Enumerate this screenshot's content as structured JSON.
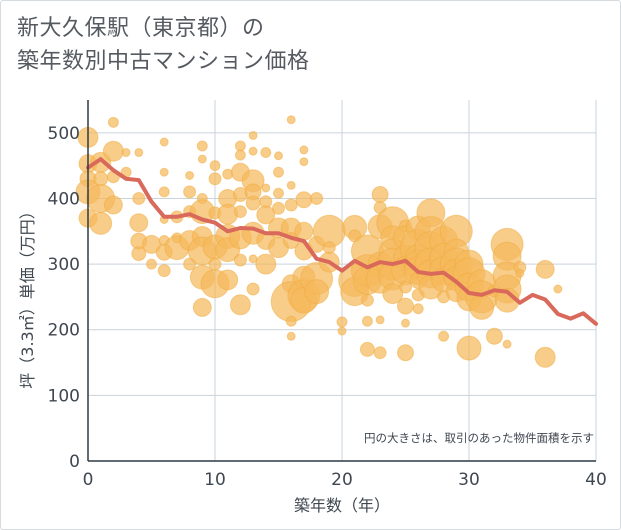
{
  "chart_data": {
    "type": "scatter",
    "title_line1": "新大久保駅（東京都）の",
    "title_line2": "築年数別中古マンション価格",
    "xlabel": "築年数（年）",
    "ylabel": "坪（3.3㎡）単価（万円）",
    "note": "円の大きさは、取引のあった物件面積を示す",
    "xlim": [
      0,
      40
    ],
    "ylim": [
      0,
      550
    ],
    "xticks": [
      0,
      10,
      20,
      30,
      40
    ],
    "yticks": [
      0,
      100,
      200,
      300,
      400,
      500
    ],
    "grid": true,
    "colors": {
      "bubble": "#f5b95c",
      "line": "#d9695a",
      "grid": "#c9d3dc",
      "axis": "#2f3a44"
    },
    "series": [
      {
        "name": "",
        "kind": "line",
        "x": [
          0,
          1,
          2,
          3,
          4,
          5,
          6,
          7,
          8,
          9,
          10,
          11,
          12,
          13,
          14,
          15,
          16,
          17,
          18,
          19,
          20,
          21,
          22,
          23,
          24,
          25,
          26,
          27,
          28,
          29,
          30,
          31,
          32,
          33,
          34,
          35,
          36,
          37,
          38,
          39,
          40
        ],
        "y": [
          447,
          460,
          443,
          430,
          428,
          395,
          372,
          372,
          376,
          368,
          363,
          350,
          355,
          354,
          347,
          347,
          340,
          335,
          308,
          303,
          290,
          305,
          295,
          303,
          300,
          305,
          288,
          285,
          287,
          273,
          256,
          253,
          260,
          258,
          241,
          253,
          246,
          224,
          217,
          225,
          209
        ]
      },
      {
        "name": "",
        "kind": "bubble",
        "points": [
          [
            0,
            493,
            10
          ],
          [
            0,
            453,
            9
          ],
          [
            0,
            430,
            8
          ],
          [
            0,
            410,
            12
          ],
          [
            0,
            370,
            9
          ],
          [
            1,
            455,
            10
          ],
          [
            1,
            430,
            7
          ],
          [
            1,
            400,
            14
          ],
          [
            1,
            362,
            11
          ],
          [
            2,
            516,
            5
          ],
          [
            2,
            472,
            10
          ],
          [
            2,
            433,
            6
          ],
          [
            2,
            390,
            9
          ],
          [
            3,
            470,
            4
          ],
          [
            3,
            440,
            5
          ],
          [
            4,
            470,
            4
          ],
          [
            4,
            400,
            6
          ],
          [
            4,
            363,
            9
          ],
          [
            4,
            335,
            8
          ],
          [
            4,
            316,
            7
          ],
          [
            5,
            330,
            9
          ],
          [
            5,
            300,
            5
          ],
          [
            6,
            486,
            4
          ],
          [
            6,
            440,
            4
          ],
          [
            6,
            410,
            5
          ],
          [
            6,
            368,
            4
          ],
          [
            6,
            336,
            5
          ],
          [
            6,
            318,
            8
          ],
          [
            6,
            290,
            6
          ],
          [
            7,
            372,
            6
          ],
          [
            7,
            340,
            5
          ],
          [
            7,
            325,
            12
          ],
          [
            8,
            435,
            4
          ],
          [
            8,
            410,
            6
          ],
          [
            8,
            380,
            6
          ],
          [
            8,
            336,
            10
          ],
          [
            8,
            300,
            6
          ],
          [
            9,
            480,
            5
          ],
          [
            9,
            460,
            4
          ],
          [
            9,
            400,
            5
          ],
          [
            9,
            380,
            12
          ],
          [
            9,
            342,
            10
          ],
          [
            9,
            320,
            14
          ],
          [
            9,
            280,
            12
          ],
          [
            9,
            234,
            9
          ],
          [
            10,
            450,
            5
          ],
          [
            10,
            430,
            6
          ],
          [
            10,
            378,
            6
          ],
          [
            10,
            326,
            12
          ],
          [
            10,
            300,
            6
          ],
          [
            10,
            270,
            14
          ],
          [
            11,
            437,
            5
          ],
          [
            11,
            400,
            9
          ],
          [
            11,
            376,
            10
          ],
          [
            11,
            342,
            12
          ],
          [
            11,
            322,
            12
          ],
          [
            11,
            276,
            10
          ],
          [
            12,
            480,
            5
          ],
          [
            12,
            466,
            5
          ],
          [
            12,
            440,
            9
          ],
          [
            12,
            406,
            7
          ],
          [
            12,
            380,
            6
          ],
          [
            12,
            340,
            11
          ],
          [
            12,
            306,
            6
          ],
          [
            12,
            238,
            10
          ],
          [
            13,
            496,
            4
          ],
          [
            13,
            472,
            4
          ],
          [
            13,
            427,
            11
          ],
          [
            13,
            410,
            8
          ],
          [
            13,
            393,
            7
          ],
          [
            13,
            347,
            11
          ],
          [
            13,
            308,
            4
          ],
          [
            13,
            262,
            6
          ],
          [
            14,
            470,
            5
          ],
          [
            14,
            416,
            4
          ],
          [
            14,
            395,
            6
          ],
          [
            14,
            375,
            9
          ],
          [
            14,
            336,
            9
          ],
          [
            14,
            300,
            10
          ],
          [
            15,
            465,
            4
          ],
          [
            15,
            440,
            5
          ],
          [
            15,
            408,
            5
          ],
          [
            15,
            385,
            6
          ],
          [
            15,
            355,
            10
          ],
          [
            15,
            325,
            10
          ],
          [
            16,
            520,
            4
          ],
          [
            16,
            420,
            4
          ],
          [
            16,
            390,
            6
          ],
          [
            16,
            355,
            10
          ],
          [
            16,
            336,
            8
          ],
          [
            16,
            270,
            9
          ],
          [
            16,
            243,
            20
          ],
          [
            16,
            213,
            5
          ],
          [
            16,
            190,
            4
          ],
          [
            17,
            474,
            4
          ],
          [
            17,
            456,
            4
          ],
          [
            17,
            398,
            8
          ],
          [
            17,
            350,
            9
          ],
          [
            17,
            320,
            9
          ],
          [
            17,
            280,
            11
          ],
          [
            17,
            252,
            16
          ],
          [
            17,
            245,
            13
          ],
          [
            18,
            400,
            6
          ],
          [
            18,
            330,
            8
          ],
          [
            18,
            278,
            16
          ],
          [
            18,
            258,
            12
          ],
          [
            19,
            350,
            16
          ],
          [
            19,
            325,
            6
          ],
          [
            19,
            303,
            10
          ],
          [
            20,
            212,
            5
          ],
          [
            20,
            198,
            4
          ],
          [
            21,
            356,
            12
          ],
          [
            21,
            343,
            6
          ],
          [
            21,
            275,
            16
          ],
          [
            21,
            258,
            14
          ],
          [
            22,
            320,
            16
          ],
          [
            22,
            290,
            16
          ],
          [
            22,
            275,
            14
          ],
          [
            22,
            245,
            6
          ],
          [
            22,
            213,
            5
          ],
          [
            22,
            170,
            7
          ],
          [
            23,
            406,
            8
          ],
          [
            23,
            386,
            6
          ],
          [
            23,
            357,
            12
          ],
          [
            23,
            300,
            12
          ],
          [
            23,
            277,
            14
          ],
          [
            23,
            215,
            4
          ],
          [
            23,
            165,
            6
          ],
          [
            24,
            363,
            16
          ],
          [
            24,
            340,
            12
          ],
          [
            24,
            317,
            14
          ],
          [
            24,
            300,
            16
          ],
          [
            24,
            282,
            14
          ],
          [
            24,
            255,
            10
          ],
          [
            25,
            358,
            6
          ],
          [
            25,
            340,
            12
          ],
          [
            25,
            310,
            12
          ],
          [
            25,
            290,
            14
          ],
          [
            25,
            265,
            6
          ],
          [
            25,
            236,
            8
          ],
          [
            25,
            210,
            4
          ],
          [
            25,
            165,
            8
          ],
          [
            26,
            355,
            12
          ],
          [
            26,
            325,
            18
          ],
          [
            26,
            310,
            13
          ],
          [
            26,
            300,
            14
          ],
          [
            26,
            290,
            14
          ],
          [
            26,
            275,
            8
          ],
          [
            26,
            253,
            6
          ],
          [
            26,
            232,
            5
          ],
          [
            27,
            378,
            14
          ],
          [
            27,
            348,
            16
          ],
          [
            27,
            325,
            16
          ],
          [
            27,
            300,
            16
          ],
          [
            27,
            285,
            14
          ],
          [
            27,
            265,
            12
          ],
          [
            28,
            336,
            14
          ],
          [
            28,
            310,
            14
          ],
          [
            28,
            290,
            14
          ],
          [
            28,
            276,
            12
          ],
          [
            28,
            250,
            6
          ],
          [
            28,
            190,
            5
          ],
          [
            29,
            350,
            16
          ],
          [
            29,
            320,
            12
          ],
          [
            29,
            300,
            16
          ],
          [
            29,
            286,
            14
          ],
          [
            29,
            278,
            12
          ],
          [
            29,
            258,
            10
          ],
          [
            30,
            300,
            14
          ],
          [
            30,
            285,
            16
          ],
          [
            30,
            265,
            14
          ],
          [
            30,
            247,
            12
          ],
          [
            30,
            172,
            12
          ],
          [
            31,
            270,
            14
          ],
          [
            31,
            250,
            16
          ],
          [
            31,
            234,
            12
          ],
          [
            32,
            259,
            6
          ],
          [
            32,
            190,
            8
          ],
          [
            33,
            330,
            16
          ],
          [
            33,
            312,
            14
          ],
          [
            33,
            282,
            14
          ],
          [
            33,
            262,
            14
          ],
          [
            33,
            245,
            12
          ],
          [
            33,
            178,
            4
          ],
          [
            34,
            295,
            6
          ],
          [
            34,
            286,
            4
          ],
          [
            36,
            158,
            10
          ],
          [
            36,
            292,
            9
          ],
          [
            37,
            262,
            4
          ]
        ]
      }
    ]
  }
}
